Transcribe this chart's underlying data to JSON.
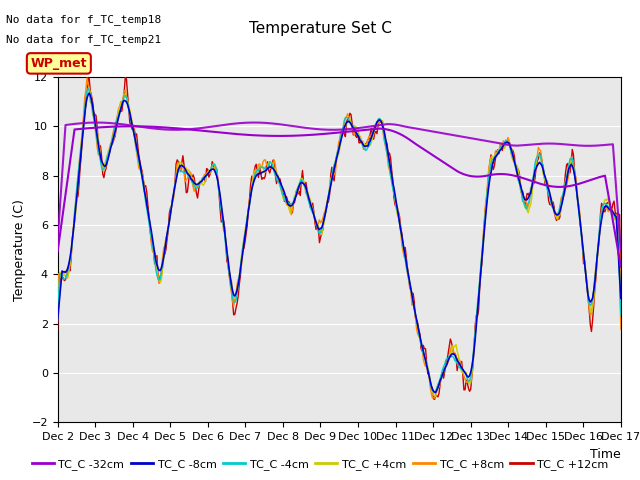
{
  "title": "Temperature Set C",
  "ylabel": "Temperature (C)",
  "xlabel": "Time",
  "annotations": [
    "No data for f_TC_temp18",
    "No data for f_TC_temp21"
  ],
  "wp_met_label": "WP_met",
  "wp_met_color": "#cc0000",
  "wp_met_bg": "#ffff99",
  "ylim": [
    -2,
    12
  ],
  "yticks": [
    -2,
    0,
    2,
    4,
    6,
    8,
    10,
    12
  ],
  "legend_entries": [
    {
      "label": "TC_C -32cm",
      "color": "#9900cc"
    },
    {
      "label": "TC_C -8cm",
      "color": "#0000cc"
    },
    {
      "label": "TC_C -4cm",
      "color": "#00cccc"
    },
    {
      "label": "TC_C +4cm",
      "color": "#cccc00"
    },
    {
      "label": "TC_C +8cm",
      "color": "#ff8800"
    },
    {
      "label": "TC_C +12cm",
      "color": "#cc0000"
    }
  ],
  "background_color": "#e8e8e8",
  "plot_bg_color": "#e8e8e8",
  "figsize": [
    6.4,
    4.8
  ],
  "dpi": 100
}
